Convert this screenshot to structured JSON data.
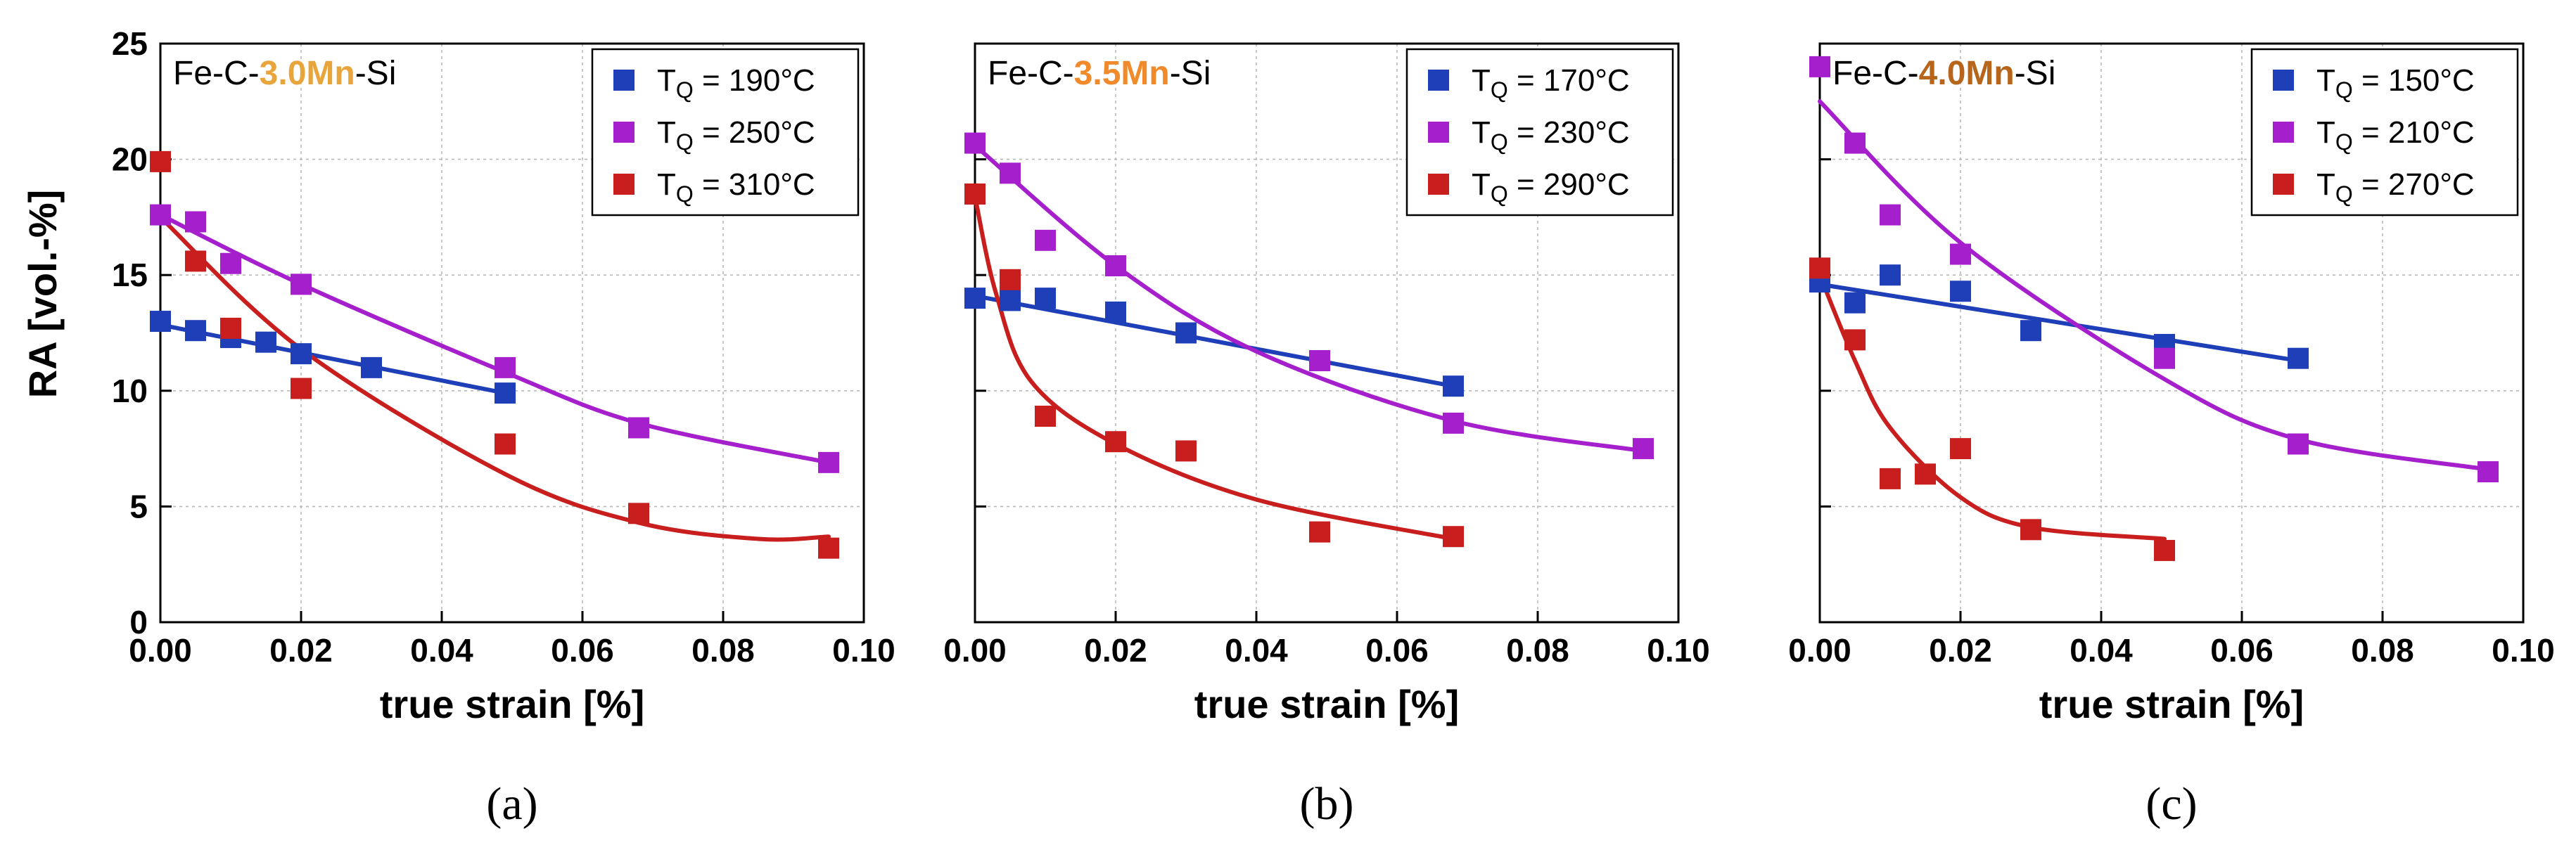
{
  "figure": {
    "ylabel": "RA [vol.-%]",
    "colors": {
      "blue": "#1f3fb8",
      "purple": "#a51fcc",
      "red": "#c81e1e"
    }
  },
  "chart_data": [
    {
      "type": "scatter",
      "panel_label": "(a)",
      "alloy": {
        "prefix": "Fe-C-",
        "mn": "3.0Mn",
        "suffix": "-Si",
        "mn_color": "#e8a53c"
      },
      "xlabel": "true strain [%]",
      "ylabel": "RA [vol.-%]",
      "xlim": [
        0,
        0.1
      ],
      "ylim": [
        0,
        25
      ],
      "grid": true,
      "legend_position": "top-right",
      "xticks": [
        "0.00",
        "0.02",
        "0.04",
        "0.06",
        "0.08",
        "0.10"
      ],
      "yticks": [
        "0",
        "5",
        "10",
        "15",
        "20",
        "25"
      ],
      "series": [
        {
          "name": "T<sub>Q</sub> = 190°C",
          "legend": {
            "pre": "T",
            "sub": "Q",
            "post": " = 190°C"
          },
          "color": "#1f3fb8",
          "x": [
            0.0,
            0.005,
            0.01,
            0.015,
            0.02,
            0.03,
            0.049
          ],
          "y": [
            13.0,
            12.6,
            12.3,
            12.1,
            11.6,
            11.0,
            9.9
          ],
          "fit": [
            [
              0,
              12.85
            ],
            [
              0.049,
              9.9
            ]
          ],
          "fit_type": "linear"
        },
        {
          "name": "T<sub>Q</sub> = 250°C",
          "legend": {
            "pre": "T",
            "sub": "Q",
            "post": " = 250°C"
          },
          "color": "#a51fcc",
          "x": [
            0.0,
            0.005,
            0.01,
            0.02,
            0.049,
            0.068,
            0.095
          ],
          "y": [
            17.6,
            17.3,
            15.5,
            14.6,
            11.0,
            8.4,
            6.9
          ],
          "fit": [
            [
              0,
              17.6
            ],
            [
              0.02,
              14.6
            ],
            [
              0.049,
              10.8
            ],
            [
              0.068,
              8.6
            ],
            [
              0.095,
              6.9
            ]
          ],
          "fit_type": "smooth"
        },
        {
          "name": "T<sub>Q</sub> = 310°C",
          "legend": {
            "pre": "T",
            "sub": "Q",
            "post": " = 310°C"
          },
          "color": "#c81e1e",
          "x": [
            0.0,
            0.005,
            0.01,
            0.02,
            0.049,
            0.068,
            0.095
          ],
          "y": [
            19.9,
            15.6,
            12.7,
            10.1,
            7.7,
            4.7,
            3.2
          ],
          "fit": [
            [
              0,
              17.5
            ],
            [
              0.02,
              11.8
            ],
            [
              0.049,
              6.4
            ],
            [
              0.068,
              4.3
            ],
            [
              0.085,
              3.6
            ],
            [
              0.095,
              3.7
            ]
          ],
          "fit_type": "smooth"
        }
      ]
    },
    {
      "type": "scatter",
      "panel_label": "(b)",
      "alloy": {
        "prefix": "Fe-C-",
        "mn": "3.5Mn",
        "suffix": "-Si",
        "mn_color": "#f08a2a"
      },
      "xlabel": "true strain [%]",
      "ylabel": "",
      "xlim": [
        0,
        0.1
      ],
      "ylim": [
        0,
        25
      ],
      "grid": true,
      "legend_position": "top-right",
      "xticks": [
        "0.00",
        "0.02",
        "0.04",
        "0.06",
        "0.08",
        "0.10"
      ],
      "yticks": [],
      "series": [
        {
          "name": "T<sub>Q</sub> = 170°C",
          "legend": {
            "pre": "T",
            "sub": "Q",
            "post": " = 170°C"
          },
          "color": "#1f3fb8",
          "x": [
            0.0,
            0.005,
            0.01,
            0.02,
            0.03,
            0.068
          ],
          "y": [
            14.0,
            13.9,
            14.0,
            13.4,
            12.5,
            10.2
          ],
          "fit": [
            [
              0,
              14.1
            ],
            [
              0.068,
              10.2
            ]
          ],
          "fit_type": "linear"
        },
        {
          "name": "T<sub>Q</sub> = 230°C",
          "legend": {
            "pre": "T",
            "sub": "Q",
            "post": " = 230°C"
          },
          "color": "#a51fcc",
          "x": [
            0.0,
            0.005,
            0.01,
            0.02,
            0.049,
            0.068,
            0.095
          ],
          "y": [
            20.7,
            19.4,
            16.5,
            15.4,
            11.3,
            8.6,
            7.5
          ],
          "fit": [
            [
              0,
              20.6
            ],
            [
              0.02,
              15.4
            ],
            [
              0.04,
              11.7
            ],
            [
              0.068,
              8.7
            ],
            [
              0.095,
              7.4
            ]
          ],
          "fit_type": "smooth"
        },
        {
          "name": "T<sub>Q</sub> = 290°C",
          "legend": {
            "pre": "T",
            "sub": "Q",
            "post": " = 290°C"
          },
          "color": "#c81e1e",
          "x": [
            0.0,
            0.005,
            0.01,
            0.02,
            0.03,
            0.049,
            0.068
          ],
          "y": [
            18.5,
            14.8,
            8.9,
            7.8,
            7.4,
            3.9,
            3.7
          ],
          "fit": [
            [
              0,
              18.4
            ],
            [
              0.003,
              14.2
            ],
            [
              0.008,
              10.4
            ],
            [
              0.02,
              7.7
            ],
            [
              0.04,
              5.3
            ],
            [
              0.068,
              3.6
            ]
          ],
          "fit_type": "smooth"
        }
      ]
    },
    {
      "type": "scatter",
      "panel_label": "(c)",
      "alloy": {
        "prefix": "Fe-C-",
        "mn": "4.0Mn",
        "suffix": "-Si",
        "mn_color": "#b8651c"
      },
      "xlabel": "true strain [%]",
      "ylabel": "",
      "xlim": [
        0,
        0.1
      ],
      "ylim": [
        0,
        25
      ],
      "grid": true,
      "legend_position": "top-right",
      "xticks": [
        "0.00",
        "0.02",
        "0.04",
        "0.06",
        "0.08",
        "0.10"
      ],
      "yticks": [],
      "series": [
        {
          "name": "T<sub>Q</sub> = 150°C",
          "legend": {
            "pre": "T",
            "sub": "Q",
            "post": " = 150°C"
          },
          "color": "#1f3fb8",
          "x": [
            0.0,
            0.005,
            0.01,
            0.02,
            0.03,
            0.049,
            0.068
          ],
          "y": [
            14.7,
            13.8,
            15.0,
            14.3,
            12.6,
            12.0,
            11.4
          ],
          "fit": [
            [
              0,
              14.6
            ],
            [
              0.068,
              11.3
            ]
          ],
          "fit_type": "linear"
        },
        {
          "name": "T<sub>Q</sub> = 210°C",
          "legend": {
            "pre": "T",
            "sub": "Q",
            "post": " = 210°C"
          },
          "color": "#a51fcc",
          "x": [
            0.0,
            0.005,
            0.01,
            0.02,
            0.049,
            0.068,
            0.095
          ],
          "y": [
            24.0,
            20.7,
            17.6,
            15.9,
            11.4,
            7.7,
            6.5
          ],
          "fit": [
            [
              0,
              22.5
            ],
            [
              0.02,
              16.4
            ],
            [
              0.049,
              10.5
            ],
            [
              0.068,
              7.9
            ],
            [
              0.095,
              6.6
            ]
          ],
          "fit_type": "smooth"
        },
        {
          "name": "T<sub>Q</sub> = 270°C",
          "legend": {
            "pre": "T",
            "sub": "Q",
            "post": " = 270°C"
          },
          "color": "#c81e1e",
          "x": [
            0.0,
            0.005,
            0.01,
            0.015,
            0.02,
            0.03,
            0.049
          ],
          "y": [
            15.3,
            12.2,
            6.2,
            6.4,
            7.5,
            4.0,
            3.1
          ],
          "fit": [
            [
              0,
              15.0
            ],
            [
              0.005,
              11.3
            ],
            [
              0.01,
              8.4
            ],
            [
              0.02,
              5.4
            ],
            [
              0.03,
              4.1
            ],
            [
              0.049,
              3.6
            ]
          ],
          "fit_type": "smooth"
        }
      ]
    }
  ]
}
